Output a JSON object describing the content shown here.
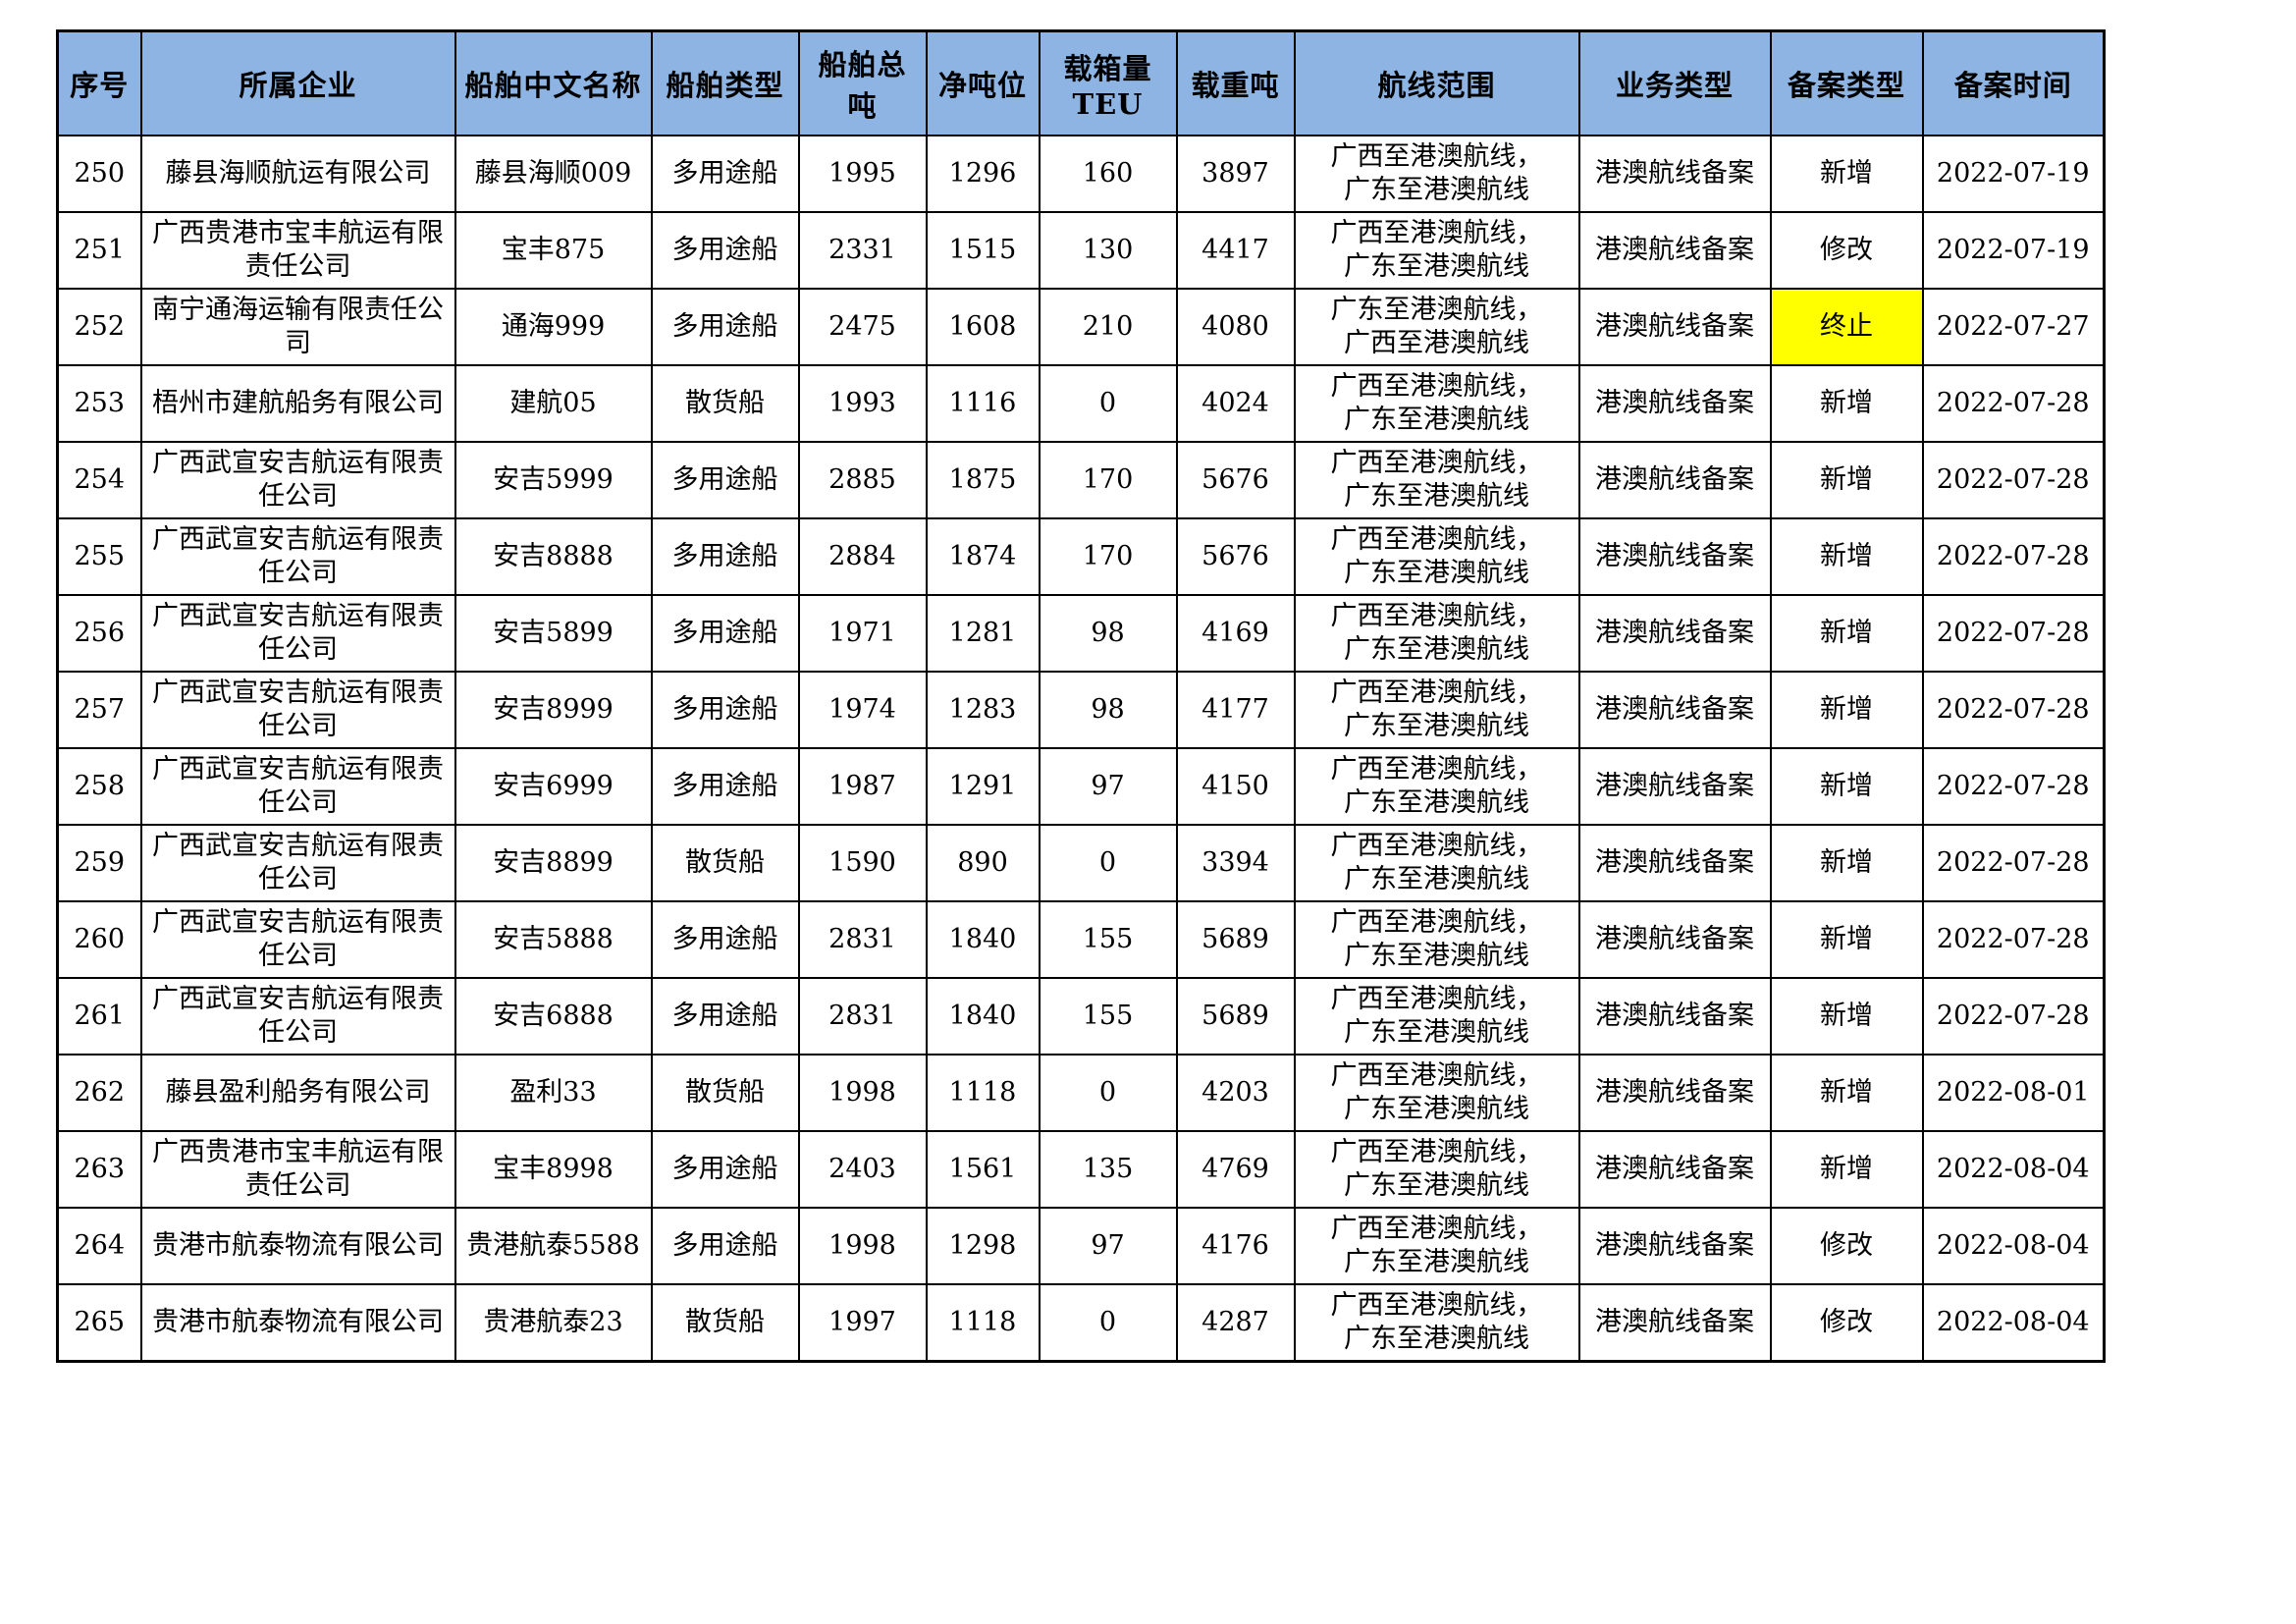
{
  "colors": {
    "header_bg": "#8DB4E2",
    "highlight_bg": "#FFFF00",
    "border": "#000000"
  },
  "table": {
    "headers": [
      "序号",
      "所属企业",
      "船舶中文名称",
      "船舶类型",
      "船舶总吨",
      "净吨位",
      "载箱量TEU",
      "载重吨",
      "航线范围",
      "业务类型",
      "备案类型",
      "备案时间"
    ],
    "rows": [
      {
        "seq": "250",
        "company": "藤县海顺航运有限公司",
        "ship_name": "藤县海顺009",
        "ship_type": "多用途船",
        "gross_tonnage": "1995",
        "net_tonnage": "1296",
        "teu": "160",
        "deadweight": "3897",
        "route": "广西至港澳航线，\n广东至港澳航线",
        "business_type": "港澳航线备案",
        "record_type": "新增",
        "record_date": "2022-07-19",
        "record_type_highlight": false
      },
      {
        "seq": "251",
        "company": "广西贵港市宝丰航运有限\n责任公司",
        "ship_name": "宝丰875",
        "ship_type": "多用途船",
        "gross_tonnage": "2331",
        "net_tonnage": "1515",
        "teu": "130",
        "deadweight": "4417",
        "route": "广西至港澳航线，\n广东至港澳航线",
        "business_type": "港澳航线备案",
        "record_type": "修改",
        "record_date": "2022-07-19",
        "record_type_highlight": false
      },
      {
        "seq": "252",
        "company": "南宁通海运输有限责任公\n司",
        "ship_name": "通海999",
        "ship_type": "多用途船",
        "gross_tonnage": "2475",
        "net_tonnage": "1608",
        "teu": "210",
        "deadweight": "4080",
        "route": "广东至港澳航线，\n广西至港澳航线",
        "business_type": "港澳航线备案",
        "record_type": "终止",
        "record_date": "2022-07-27",
        "record_type_highlight": true
      },
      {
        "seq": "253",
        "company": "梧州市建航船务有限公司",
        "ship_name": "建航05",
        "ship_type": "散货船",
        "gross_tonnage": "1993",
        "net_tonnage": "1116",
        "teu": "0",
        "deadweight": "4024",
        "route": "广西至港澳航线，\n广东至港澳航线",
        "business_type": "港澳航线备案",
        "record_type": "新增",
        "record_date": "2022-07-28",
        "record_type_highlight": false
      },
      {
        "seq": "254",
        "company": "广西武宣安吉航运有限责\n任公司",
        "ship_name": "安吉5999",
        "ship_type": "多用途船",
        "gross_tonnage": "2885",
        "net_tonnage": "1875",
        "teu": "170",
        "deadweight": "5676",
        "route": "广西至港澳航线，\n广东至港澳航线",
        "business_type": "港澳航线备案",
        "record_type": "新增",
        "record_date": "2022-07-28",
        "record_type_highlight": false
      },
      {
        "seq": "255",
        "company": "广西武宣安吉航运有限责\n任公司",
        "ship_name": "安吉8888",
        "ship_type": "多用途船",
        "gross_tonnage": "2884",
        "net_tonnage": "1874",
        "teu": "170",
        "deadweight": "5676",
        "route": "广西至港澳航线，\n广东至港澳航线",
        "business_type": "港澳航线备案",
        "record_type": "新增",
        "record_date": "2022-07-28",
        "record_type_highlight": false
      },
      {
        "seq": "256",
        "company": "广西武宣安吉航运有限责\n任公司",
        "ship_name": "安吉5899",
        "ship_type": "多用途船",
        "gross_tonnage": "1971",
        "net_tonnage": "1281",
        "teu": "98",
        "deadweight": "4169",
        "route": "广西至港澳航线，\n广东至港澳航线",
        "business_type": "港澳航线备案",
        "record_type": "新增",
        "record_date": "2022-07-28",
        "record_type_highlight": false
      },
      {
        "seq": "257",
        "company": "广西武宣安吉航运有限责\n任公司",
        "ship_name": "安吉8999",
        "ship_type": "多用途船",
        "gross_tonnage": "1974",
        "net_tonnage": "1283",
        "teu": "98",
        "deadweight": "4177",
        "route": "广西至港澳航线，\n广东至港澳航线",
        "business_type": "港澳航线备案",
        "record_type": "新增",
        "record_date": "2022-07-28",
        "record_type_highlight": false
      },
      {
        "seq": "258",
        "company": "广西武宣安吉航运有限责\n任公司",
        "ship_name": "安吉6999",
        "ship_type": "多用途船",
        "gross_tonnage": "1987",
        "net_tonnage": "1291",
        "teu": "97",
        "deadweight": "4150",
        "route": "广西至港澳航线，\n广东至港澳航线",
        "business_type": "港澳航线备案",
        "record_type": "新增",
        "record_date": "2022-07-28",
        "record_type_highlight": false
      },
      {
        "seq": "259",
        "company": "广西武宣安吉航运有限责\n任公司",
        "ship_name": "安吉8899",
        "ship_type": "散货船",
        "gross_tonnage": "1590",
        "net_tonnage": "890",
        "teu": "0",
        "deadweight": "3394",
        "route": "广西至港澳航线，\n广东至港澳航线",
        "business_type": "港澳航线备案",
        "record_type": "新增",
        "record_date": "2022-07-28",
        "record_type_highlight": false
      },
      {
        "seq": "260",
        "company": "广西武宣安吉航运有限责\n任公司",
        "ship_name": "安吉5888",
        "ship_type": "多用途船",
        "gross_tonnage": "2831",
        "net_tonnage": "1840",
        "teu": "155",
        "deadweight": "5689",
        "route": "广西至港澳航线，\n广东至港澳航线",
        "business_type": "港澳航线备案",
        "record_type": "新增",
        "record_date": "2022-07-28",
        "record_type_highlight": false
      },
      {
        "seq": "261",
        "company": "广西武宣安吉航运有限责\n任公司",
        "ship_name": "安吉6888",
        "ship_type": "多用途船",
        "gross_tonnage": "2831",
        "net_tonnage": "1840",
        "teu": "155",
        "deadweight": "5689",
        "route": "广西至港澳航线，\n广东至港澳航线",
        "business_type": "港澳航线备案",
        "record_type": "新增",
        "record_date": "2022-07-28",
        "record_type_highlight": false
      },
      {
        "seq": "262",
        "company": "藤县盈利船务有限公司",
        "ship_name": "盈利33",
        "ship_type": "散货船",
        "gross_tonnage": "1998",
        "net_tonnage": "1118",
        "teu": "0",
        "deadweight": "4203",
        "route": "广西至港澳航线，\n广东至港澳航线",
        "business_type": "港澳航线备案",
        "record_type": "新增",
        "record_date": "2022-08-01",
        "record_type_highlight": false
      },
      {
        "seq": "263",
        "company": "广西贵港市宝丰航运有限\n责任公司",
        "ship_name": "宝丰8998",
        "ship_type": "多用途船",
        "gross_tonnage": "2403",
        "net_tonnage": "1561",
        "teu": "135",
        "deadweight": "4769",
        "route": "广西至港澳航线，\n广东至港澳航线",
        "business_type": "港澳航线备案",
        "record_type": "新增",
        "record_date": "2022-08-04",
        "record_type_highlight": false
      },
      {
        "seq": "264",
        "company": "贵港市航泰物流有限公司",
        "ship_name": "贵港航泰5588",
        "ship_type": "多用途船",
        "gross_tonnage": "1998",
        "net_tonnage": "1298",
        "teu": "97",
        "deadweight": "4176",
        "route": "广西至港澳航线，\n广东至港澳航线",
        "business_type": "港澳航线备案",
        "record_type": "修改",
        "record_date": "2022-08-04",
        "record_type_highlight": false
      },
      {
        "seq": "265",
        "company": "贵港市航泰物流有限公司",
        "ship_name": "贵港航泰23",
        "ship_type": "散货船",
        "gross_tonnage": "1997",
        "net_tonnage": "1118",
        "teu": "0",
        "deadweight": "4287",
        "route": "广西至港澳航线，\n广东至港澳航线",
        "business_type": "港澳航线备案",
        "record_type": "修改",
        "record_date": "2022-08-04",
        "record_type_highlight": false
      }
    ]
  }
}
